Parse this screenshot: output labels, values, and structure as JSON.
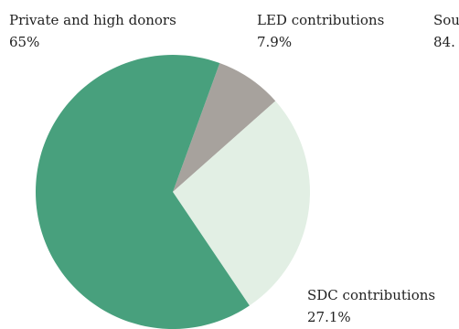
{
  "chart_data": {
    "type": "pie",
    "slices": [
      {
        "label": "LED contributions",
        "value_label": "7.9%",
        "value": 7.9,
        "color": "#a7a29d"
      },
      {
        "label": "SDC contributions",
        "value_label": "27.1%",
        "value": 27.1,
        "color": "#e2efe4"
      },
      {
        "label": "Private and high donors",
        "value_label": "65%",
        "value": 65,
        "color": "#48a07d"
      }
    ],
    "cut_off_label": {
      "label": "Sou",
      "value_label": "84."
    }
  }
}
